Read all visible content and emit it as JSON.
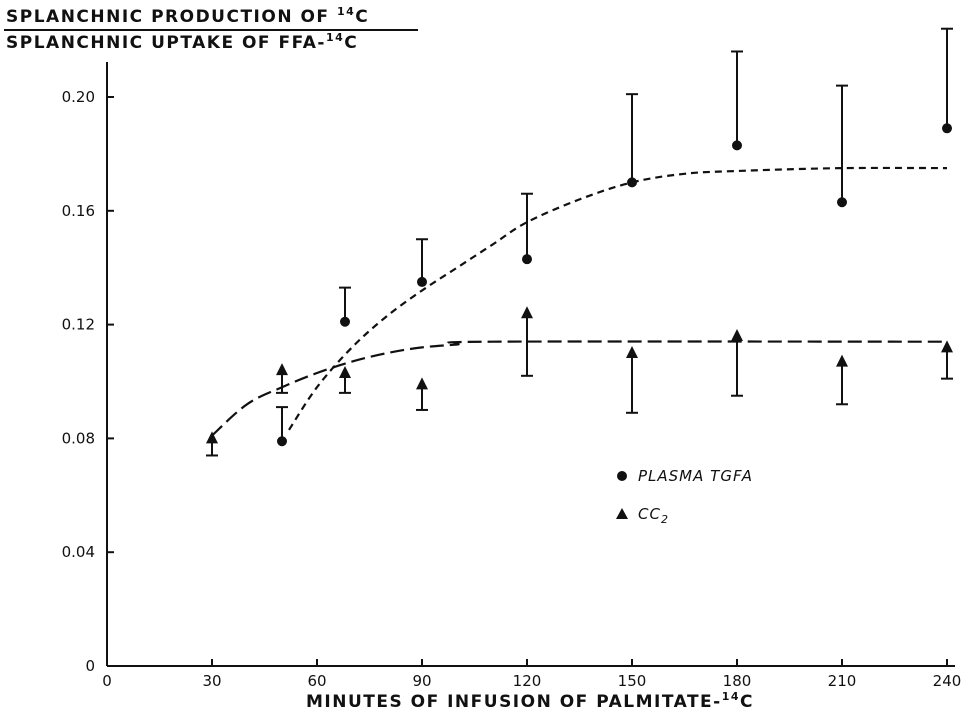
{
  "chart_data": {
    "type": "scatter",
    "ylabel_numerator": {
      "text": "SPLANCHNIC PRODUCTION OF ",
      "superscript": "14",
      "suffix": "C"
    },
    "ylabel_denominator": {
      "text": "SPLANCHNIC UPTAKE OF FFA-",
      "superscript": "14",
      "suffix": "C"
    },
    "xlabel": {
      "text": "MINUTES OF INFUSION OF PALMITATE-",
      "superscript": "14",
      "suffix": "C"
    },
    "xlim": [
      0,
      240
    ],
    "ylim": [
      0,
      0.24
    ],
    "x_ticks": [
      0,
      30,
      60,
      90,
      120,
      150,
      180,
      210,
      240
    ],
    "x_tick_labels": [
      "0",
      "30",
      "60",
      "90",
      "120",
      "150",
      "180",
      "210",
      "240"
    ],
    "y_ticks": [
      0,
      0.04,
      0.08,
      0.12,
      0.16,
      0.2
    ],
    "y_tick_labels": [
      "0",
      "0.04",
      "0.08",
      "0.12",
      "0.16",
      "0.20"
    ],
    "grid": false,
    "legend_position": "right-middle",
    "series": [
      {
        "name": "PLASMA TGFA",
        "marker": "circle",
        "error_direction": "up",
        "points": [
          {
            "x": 50,
            "y": 0.079,
            "err": 0.012
          },
          {
            "x": 68,
            "y": 0.121,
            "err": 0.012
          },
          {
            "x": 90,
            "y": 0.135,
            "err": 0.015
          },
          {
            "x": 120,
            "y": 0.143,
            "err": 0.023
          },
          {
            "x": 150,
            "y": 0.17,
            "err": 0.031
          },
          {
            "x": 180,
            "y": 0.183,
            "err": 0.033
          },
          {
            "x": 210,
            "y": 0.163,
            "err": 0.041
          },
          {
            "x": 240,
            "y": 0.189,
            "err": 0.035
          }
        ],
        "fit_curve": [
          [
            52,
            0.083
          ],
          [
            60,
            0.098
          ],
          [
            70,
            0.112
          ],
          [
            80,
            0.123
          ],
          [
            90,
            0.132
          ],
          [
            100,
            0.14
          ],
          [
            110,
            0.148
          ],
          [
            120,
            0.156
          ],
          [
            135,
            0.164
          ],
          [
            150,
            0.17
          ],
          [
            165,
            0.173
          ],
          [
            180,
            0.174
          ],
          [
            210,
            0.175
          ],
          [
            240,
            0.175
          ]
        ]
      },
      {
        "name": "CC2",
        "marker": "triangle",
        "error_direction": "down",
        "points": [
          {
            "x": 30,
            "y": 0.08,
            "err": 0.006
          },
          {
            "x": 50,
            "y": 0.104,
            "err": 0.008
          },
          {
            "x": 68,
            "y": 0.103,
            "err": 0.007
          },
          {
            "x": 90,
            "y": 0.099,
            "err": 0.009
          },
          {
            "x": 120,
            "y": 0.124,
            "err": 0.022
          },
          {
            "x": 150,
            "y": 0.11,
            "err": 0.021
          },
          {
            "x": 180,
            "y": 0.116,
            "err": 0.021
          },
          {
            "x": 210,
            "y": 0.107,
            "err": 0.015
          },
          {
            "x": 240,
            "y": 0.112,
            "err": 0.011
          }
        ],
        "fit_curve": [
          [
            30,
            0.081
          ],
          [
            40,
            0.092
          ],
          [
            50,
            0.098
          ],
          [
            60,
            0.103
          ],
          [
            70,
            0.107
          ],
          [
            80,
            0.11
          ],
          [
            90,
            0.112
          ],
          [
            100,
            0.113
          ],
          [
            110,
            0.114
          ],
          [
            240,
            0.114
          ]
        ]
      }
    ],
    "legend": [
      {
        "label": "PLASMA TGFA",
        "marker": "circle"
      },
      {
        "label": "CC",
        "subscript": "2",
        "marker": "triangle"
      }
    ]
  }
}
